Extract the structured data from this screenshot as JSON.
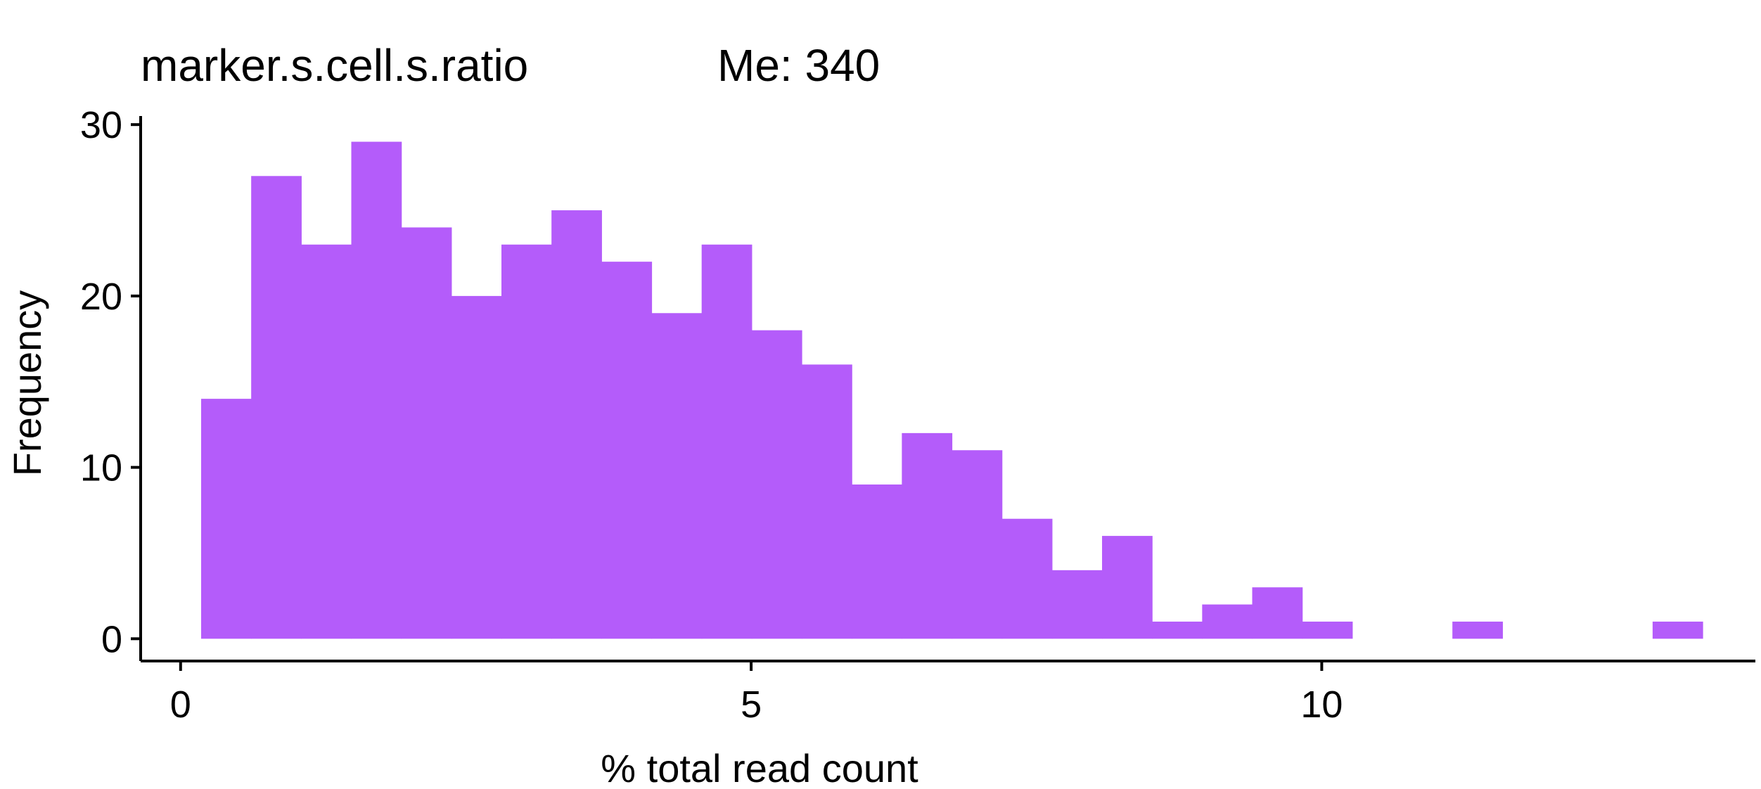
{
  "chart_data": {
    "type": "bar",
    "title": "marker.s.cell.s.ratio",
    "subtitle": "Me: 340",
    "xlabel": "% total read count",
    "ylabel": "Frequency",
    "xlim": [
      -0.35,
      13.8
    ],
    "ylim": [
      -1.3,
      30.5
    ],
    "x_ticks": [
      0,
      5,
      10
    ],
    "y_ticks": [
      0,
      10,
      20,
      30
    ],
    "bin_width": 0.4386,
    "bins": [
      {
        "start": 0.18,
        "count": 14
      },
      {
        "start": 0.6186,
        "count": 27
      },
      {
        "start": 1.0572,
        "count": 23
      },
      {
        "start": 1.4958,
        "count": 29
      },
      {
        "start": 1.9344,
        "count": 24
      },
      {
        "start": 2.373,
        "count": 20
      },
      {
        "start": 2.8116,
        "count": 23
      },
      {
        "start": 3.2502,
        "count": 25
      },
      {
        "start": 3.6888,
        "count": 22
      },
      {
        "start": 4.1274,
        "count": 19
      },
      {
        "start": 4.566,
        "count": 23
      },
      {
        "start": 5.0046,
        "count": 18
      },
      {
        "start": 5.4432,
        "count": 16
      },
      {
        "start": 5.8818,
        "count": 9
      },
      {
        "start": 6.3204,
        "count": 12
      },
      {
        "start": 6.759,
        "count": 11
      },
      {
        "start": 7.1976,
        "count": 7
      },
      {
        "start": 7.6362,
        "count": 4
      },
      {
        "start": 8.0748,
        "count": 6
      },
      {
        "start": 8.5134,
        "count": 1
      },
      {
        "start": 8.952,
        "count": 2
      },
      {
        "start": 9.3906,
        "count": 3
      },
      {
        "start": 9.8292,
        "count": 1
      },
      {
        "start": 10.2678,
        "count": 0
      },
      {
        "start": 10.7064,
        "count": 0
      },
      {
        "start": 11.145,
        "count": 1
      },
      {
        "start": 11.5836,
        "count": 0
      },
      {
        "start": 12.0222,
        "count": 0
      },
      {
        "start": 12.4608,
        "count": 0
      },
      {
        "start": 12.8994,
        "count": 1
      }
    ],
    "bar_color": "#b45cfa",
    "grid": false,
    "legend": "none"
  }
}
